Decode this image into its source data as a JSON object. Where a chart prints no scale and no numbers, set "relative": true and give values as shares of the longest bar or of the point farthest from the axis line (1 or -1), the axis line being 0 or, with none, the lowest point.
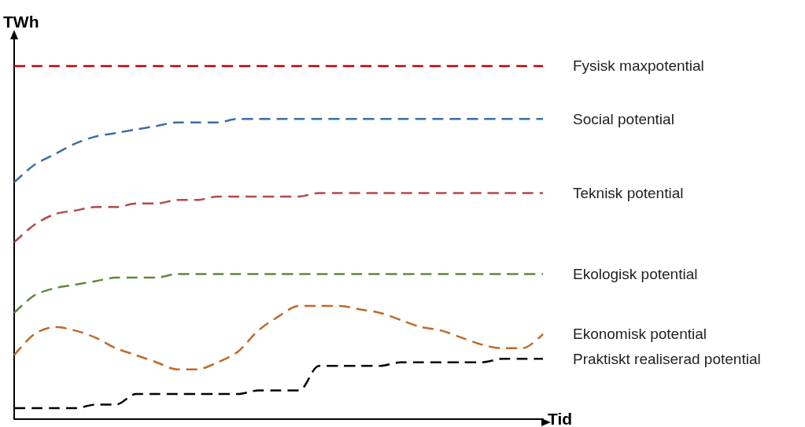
{
  "chart_data": {
    "type": "line",
    "relative": true,
    "xlabel": "Tid",
    "ylabel": "TWh",
    "categories": [
      null,
      null,
      null,
      null,
      null,
      null,
      null,
      null,
      null,
      null,
      null,
      null,
      null,
      null,
      null,
      null,
      null,
      null,
      null,
      null,
      null,
      null,
      null,
      null,
      null,
      null,
      null
    ],
    "legend": false,
    "grid": false,
    "marker": "none",
    "line_style": "dashed",
    "series": [
      {
        "name": "Fysisk maxpotential",
        "color": "#c00000",
        "values": [
          1,
          1,
          1,
          1,
          1,
          1,
          1,
          1,
          1,
          1,
          1,
          1,
          1,
          1,
          1,
          1,
          1,
          1,
          1,
          1,
          1,
          1,
          1,
          1,
          1,
          1,
          1
        ]
      },
      {
        "name": "Social potential",
        "color": "#3a6ea5",
        "values": [
          0.67,
          0.72,
          0.75,
          0.78,
          0.8,
          0.81,
          0.82,
          0.83,
          0.84,
          0.84,
          0.84,
          0.85,
          0.85,
          0.85,
          0.85,
          0.85,
          0.85,
          0.85,
          0.85,
          0.85,
          0.85,
          0.85,
          0.85,
          0.85,
          0.85,
          0.85,
          0.85
        ]
      },
      {
        "name": "Teknisk potential",
        "color": "#b04a4a",
        "values": [
          0.5,
          0.55,
          0.58,
          0.59,
          0.6,
          0.6,
          0.61,
          0.61,
          0.62,
          0.62,
          0.63,
          0.63,
          0.63,
          0.63,
          0.63,
          0.64,
          0.64,
          0.64,
          0.64,
          0.64,
          0.64,
          0.64,
          0.64,
          0.64,
          0.64,
          0.64,
          0.64
        ]
      },
      {
        "name": "Ekologisk potential",
        "color": "#5e8a3a",
        "values": [
          0.3,
          0.35,
          0.37,
          0.38,
          0.39,
          0.4,
          0.4,
          0.4,
          0.41,
          0.41,
          0.41,
          0.41,
          0.41,
          0.41,
          0.41,
          0.41,
          0.41,
          0.41,
          0.41,
          0.41,
          0.41,
          0.41,
          0.41,
          0.41,
          0.41,
          0.41,
          0.41
        ]
      },
      {
        "name": "Ekonomisk potential",
        "color": "#c0692a",
        "values": [
          0.18,
          0.24,
          0.26,
          0.25,
          0.23,
          0.2,
          0.18,
          0.16,
          0.14,
          0.14,
          0.16,
          0.19,
          0.25,
          0.29,
          0.32,
          0.32,
          0.32,
          0.31,
          0.3,
          0.28,
          0.26,
          0.25,
          0.23,
          0.21,
          0.2,
          0.2,
          0.24
        ]
      },
      {
        "name": "Praktiskt realiserad potential",
        "color": "#000000",
        "values": [
          0.03,
          0.03,
          0.03,
          0.03,
          0.04,
          0.04,
          0.07,
          0.07,
          0.07,
          0.07,
          0.07,
          0.07,
          0.08,
          0.08,
          0.08,
          0.15,
          0.15,
          0.15,
          0.15,
          0.16,
          0.16,
          0.16,
          0.16,
          0.16,
          0.17,
          0.17,
          0.17
        ]
      }
    ]
  }
}
